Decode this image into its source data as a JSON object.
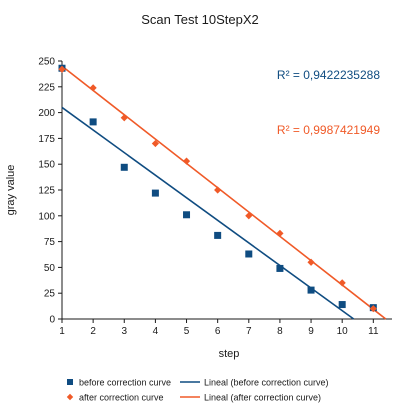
{
  "chart_data": {
    "type": "scatter",
    "title": "Scan Test 10StepX2",
    "xlabel": "step",
    "ylabel": "gray value",
    "xlim": [
      1,
      11.6
    ],
    "ylim": [
      0,
      250
    ],
    "x_ticks": [
      1,
      2,
      3,
      4,
      5,
      6,
      7,
      8,
      9,
      10,
      11
    ],
    "y_ticks": [
      0,
      25,
      50,
      75,
      100,
      125,
      150,
      175,
      200,
      225,
      250
    ],
    "grid": false,
    "legend_position": "bottom",
    "series": [
      {
        "name": "before correction curve",
        "marker": "square",
        "color": "#0f4c81",
        "x": [
          1,
          2,
          3,
          4,
          5,
          6,
          7,
          8,
          9,
          10,
          11
        ],
        "y": [
          243,
          191,
          147,
          122,
          101,
          81,
          63,
          49,
          28,
          14,
          11
        ]
      },
      {
        "name": "after correction curve",
        "marker": "diamond",
        "color": "#f05a28",
        "x": [
          1,
          2,
          3,
          4,
          5,
          6,
          7,
          8,
          9,
          10,
          11
        ],
        "y": [
          242,
          224,
          195,
          170,
          153,
          125,
          100,
          83,
          55,
          35,
          10
        ]
      }
    ],
    "trendlines": [
      {
        "name": "Lineal (before correction curve)",
        "series": "before correction curve",
        "color": "#0f4c81",
        "x": [
          1,
          10.37
        ],
        "y": [
          205,
          0
        ]
      },
      {
        "name": "Lineal (after correction curve)",
        "series": "after correction curve",
        "color": "#f05a28",
        "x": [
          1,
          11.4
        ],
        "y": [
          245,
          0
        ]
      }
    ],
    "annotations": [
      {
        "text": "R² = 0,9422235288",
        "color": "#0f4c81"
      },
      {
        "text": "R² = 0,9987421949",
        "color": "#f05a28"
      }
    ]
  }
}
